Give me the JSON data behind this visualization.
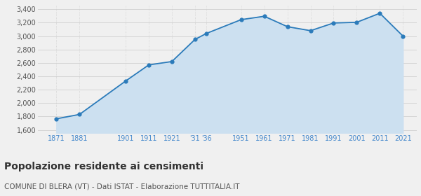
{
  "years": [
    1871,
    1881,
    1901,
    1911,
    1921,
    1931,
    1936,
    1951,
    1961,
    1971,
    1981,
    1991,
    2001,
    2011,
    2021
  ],
  "population": [
    1766,
    1831,
    2330,
    2570,
    2620,
    2950,
    3040,
    3245,
    3295,
    3140,
    3080,
    3195,
    3205,
    3340,
    3000
  ],
  "x_tick_labels": [
    "1871",
    "1881",
    "1901",
    "1911",
    "1921",
    "'31",
    "'36",
    "1951",
    "1961",
    "1971",
    "1981",
    "1991",
    "2001",
    "2011",
    "2021"
  ],
  "y_ticks": [
    1600,
    1800,
    2000,
    2200,
    2400,
    2600,
    2800,
    3000,
    3200,
    3400
  ],
  "ylim": [
    1550,
    3450
  ],
  "xlim": [
    1863,
    2027
  ],
  "line_color": "#2b7bba",
  "fill_color": "#cce0f0",
  "marker_color": "#2b7bba",
  "grid_color": "#d0d0d0",
  "background_color": "#f0f0f0",
  "tick_label_color": "#4488cc",
  "title": "Popolazione residente ai censimenti",
  "subtitle": "COMUNE DI BLERA (VT) - Dati ISTAT - Elaborazione TUTTITALIA.IT",
  "title_fontsize": 10,
  "subtitle_fontsize": 7.5
}
